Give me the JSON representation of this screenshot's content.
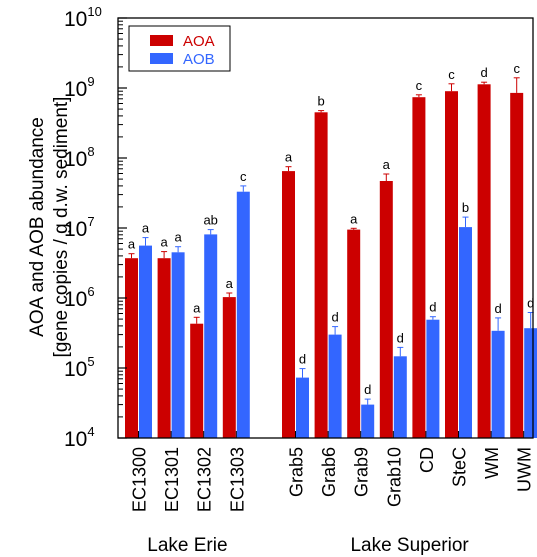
{
  "chart_data": {
    "type": "bar",
    "yscale": "log",
    "ylim": [
      10000,
      10000000000
    ],
    "ylabel_line1": "AOA and AOB abundance",
    "ylabel_line2": "[gene copies / g d.w. sediment]",
    "ytick_base": "10",
    "ytick_exponents": [
      "4",
      "5",
      "6",
      "7",
      "8",
      "9",
      "10"
    ],
    "grid": false,
    "legend_position": "top-left",
    "groups": [
      {
        "label": "Lake Erie",
        "categories": [
          "EC1300",
          "EC1301",
          "EC1302",
          "EC1303"
        ]
      },
      {
        "label": "Lake Superior",
        "categories": [
          "Grab5",
          "Grab6",
          "Grab9",
          "Grab10",
          "CD",
          "SteC",
          "WM",
          "UWM"
        ]
      }
    ],
    "series": [
      {
        "name": "AOA",
        "color": "#cc0000",
        "values": [
          3700000,
          3700000,
          430000,
          1030000,
          65000000,
          450000000,
          9500000,
          47000000,
          740000000,
          900000000,
          1130000000,
          850000000
        ],
        "errors": [
          600000,
          900000,
          100000,
          150000,
          10000000,
          25000000,
          400000,
          12000000,
          60000000,
          250000000,
          80000000,
          550000000
        ],
        "labels": [
          "a",
          "a",
          "a",
          "a",
          "a",
          "b",
          "a",
          "a",
          "c",
          "c",
          "d",
          "c"
        ]
      },
      {
        "name": "AOB",
        "color": "#3366ff",
        "values": [
          5600000,
          4500000,
          8100000,
          33000000,
          73000,
          300000,
          30000,
          147000,
          490000,
          10300000,
          340000,
          370000
        ],
        "errors": [
          1700000,
          900000,
          1400000,
          7000000,
          25000,
          90000,
          6000,
          50000,
          50000,
          4000000,
          180000,
          250000
        ],
        "labels": [
          "a",
          "a",
          "ab",
          "c",
          "d",
          "d",
          "d",
          "d",
          "d",
          "b",
          "d",
          "d"
        ]
      }
    ]
  }
}
